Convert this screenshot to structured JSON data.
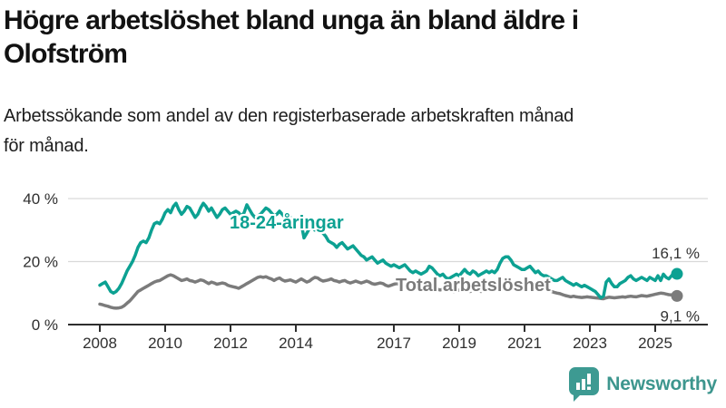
{
  "header": {
    "title_lines": [
      "Högre arbetslöshet bland unga än bland äldre i",
      "Olofström"
    ],
    "subtitle_lines": [
      "Arbetssökande som andel av den registerbaserade arbetskraften månad",
      "för månad."
    ]
  },
  "chart_data": {
    "type": "line",
    "title": "Högre arbetslöshet bland unga än bland äldre i Olofström",
    "subtitle": "Arbetssökande som andel av den registerbaserade arbetskraften månad för månad.",
    "x_unit": "month",
    "x_start": 2008.0,
    "x_end": 2025.667,
    "x_ticks": [
      "2008",
      "2010",
      "2012",
      "2014",
      "2017",
      "2019",
      "2021",
      "2023",
      "2025"
    ],
    "y_ticks": [
      {
        "value": 0,
        "label": "0 %"
      },
      {
        "value": 20,
        "label": "20 %"
      },
      {
        "value": 40,
        "label": "40 %"
      }
    ],
    "ylim": [
      0,
      45
    ],
    "grid": "horizontal",
    "legend_position": "inline-labels",
    "series": [
      {
        "name": "Total arbetslöshet",
        "color": "#7b7b7b",
        "end_label": "9,1 %",
        "end_label_position": "below",
        "last_value": 9.1,
        "values": [
          6.5,
          6.3,
          6.0,
          5.8,
          5.5,
          5.3,
          5.2,
          5.3,
          5.5,
          6.0,
          6.8,
          7.5,
          8.5,
          9.5,
          10.5,
          11.0,
          11.5,
          12.0,
          12.5,
          13.0,
          13.5,
          13.8,
          14.0,
          14.5,
          15.0,
          15.5,
          15.8,
          15.5,
          15.0,
          14.5,
          14.0,
          14.2,
          14.5,
          14.0,
          13.8,
          13.5,
          13.8,
          14.2,
          14.0,
          13.5,
          13.0,
          13.5,
          13.2,
          12.8,
          13.0,
          13.2,
          13.0,
          12.5,
          12.2,
          12.0,
          11.8,
          11.5,
          12.0,
          12.5,
          13.0,
          13.5,
          14.0,
          14.5,
          15.0,
          15.2,
          15.0,
          15.2,
          14.8,
          14.5,
          14.0,
          14.5,
          14.8,
          14.2,
          13.8,
          14.0,
          14.2,
          13.8,
          13.5,
          14.0,
          14.5,
          14.0,
          13.5,
          13.8,
          14.5,
          15.0,
          14.8,
          14.2,
          13.8,
          14.0,
          14.2,
          14.5,
          14.0,
          13.8,
          13.5,
          13.8,
          14.0,
          13.5,
          13.2,
          13.5,
          13.8,
          13.5,
          13.2,
          13.5,
          13.8,
          13.5,
          13.0,
          12.8,
          13.0,
          13.2,
          13.0,
          12.5,
          12.2,
          12.5,
          12.8,
          13.0,
          12.8,
          12.5,
          12.2,
          12.5,
          12.2,
          11.8,
          12.0,
          12.2,
          12.0,
          11.8,
          11.5,
          11.8,
          12.0,
          11.5,
          11.2,
          11.0,
          11.2,
          11.5,
          11.2,
          10.8,
          10.5,
          10.8,
          11.0,
          11.2,
          11.0,
          10.8,
          10.5,
          10.8,
          11.0,
          10.8,
          10.5,
          10.8,
          11.0,
          11.2,
          11.5,
          11.2,
          11.8,
          12.5,
          13.0,
          13.2,
          13.0,
          12.8,
          12.5,
          12.2,
          12.0,
          12.2,
          12.5,
          12.8,
          12.5,
          12.2,
          12.0,
          11.8,
          11.5,
          11.2,
          11.0,
          10.8,
          10.5,
          10.2,
          10.0,
          9.8,
          9.5,
          9.2,
          9.0,
          8.8,
          9.0,
          8.8,
          8.7,
          8.6,
          8.7,
          8.8,
          8.7,
          8.6,
          8.5,
          8.4,
          8.3,
          8.2,
          8.5,
          8.7,
          8.6,
          8.5,
          8.6,
          8.7,
          8.8,
          8.7,
          8.9,
          9.0,
          8.9,
          8.8,
          9.0,
          9.2,
          9.1,
          9.0,
          9.2,
          9.4,
          9.6,
          9.8,
          10.0,
          9.9,
          9.7,
          9.5,
          9.4,
          9.2,
          9.1
        ]
      },
      {
        "name": "18-24-åringar",
        "color": "#0ca192",
        "end_label": "16,1 %",
        "end_label_position": "above",
        "last_value": 16.1,
        "values": [
          12.5,
          13.0,
          13.5,
          12.0,
          10.5,
          10.0,
          10.5,
          11.5,
          13.0,
          15.0,
          17.0,
          18.5,
          20.0,
          22.0,
          24.5,
          26.0,
          26.5,
          26.0,
          27.5,
          30.0,
          32.0,
          32.5,
          32.0,
          33.5,
          35.5,
          36.5,
          35.5,
          37.5,
          38.5,
          36.5,
          35.0,
          36.0,
          37.5,
          37.0,
          35.5,
          34.0,
          35.0,
          37.0,
          38.5,
          37.5,
          36.0,
          37.0,
          35.5,
          34.0,
          35.0,
          36.5,
          37.0,
          36.0,
          35.0,
          35.5,
          36.0,
          35.5,
          34.5,
          35.5,
          38.0,
          36.5,
          35.0,
          34.0,
          34.5,
          35.0,
          36.0,
          37.0,
          36.5,
          35.5,
          34.5,
          35.0,
          36.0,
          35.0,
          34.0,
          33.5,
          34.0,
          33.0,
          32.5,
          33.0,
          32.0,
          27.5,
          29.0,
          30.5,
          31.0,
          30.0,
          29.5,
          30.0,
          29.0,
          28.0,
          26.5,
          26.0,
          25.5,
          24.5,
          25.5,
          26.0,
          25.0,
          24.0,
          24.5,
          25.0,
          24.0,
          23.0,
          22.0,
          21.5,
          20.5,
          21.0,
          21.5,
          20.5,
          19.5,
          20.0,
          20.5,
          19.5,
          19.0,
          18.5,
          19.0,
          18.5,
          18.0,
          18.5,
          19.0,
          18.0,
          17.0,
          16.5,
          17.0,
          16.5,
          16.0,
          16.5,
          17.0,
          18.5,
          18.0,
          17.0,
          16.0,
          15.5,
          16.0,
          15.0,
          14.5,
          15.0,
          15.5,
          16.0,
          15.5,
          16.5,
          17.5,
          16.5,
          16.0,
          17.0,
          16.5,
          15.5,
          16.0,
          16.5,
          17.0,
          16.5,
          17.0,
          16.5,
          17.5,
          19.5,
          21.0,
          21.5,
          21.5,
          20.5,
          19.0,
          18.5,
          18.0,
          17.5,
          17.5,
          18.0,
          18.5,
          17.5,
          16.5,
          17.0,
          16.0,
          15.5,
          15.5,
          15.0,
          14.5,
          14.0,
          14.0,
          14.5,
          15.0,
          14.0,
          13.5,
          13.0,
          12.5,
          13.0,
          12.5,
          12.0,
          12.5,
          12.0,
          11.5,
          11.0,
          10.5,
          9.5,
          8.5,
          9.0,
          13.5,
          14.5,
          13.0,
          12.0,
          12.0,
          13.0,
          13.5,
          14.0,
          15.0,
          15.5,
          14.5,
          14.0,
          14.5,
          15.0,
          14.5,
          14.0,
          15.0,
          14.5,
          14.0,
          15.5,
          14.0,
          16.0,
          15.0,
          14.5,
          15.5,
          16.5,
          16.1
        ]
      }
    ]
  },
  "branding": {
    "logo_text": "Newsworthy",
    "logo_icon": "bar-chart-speech-bubble",
    "accent_color": "#3d968e"
  }
}
